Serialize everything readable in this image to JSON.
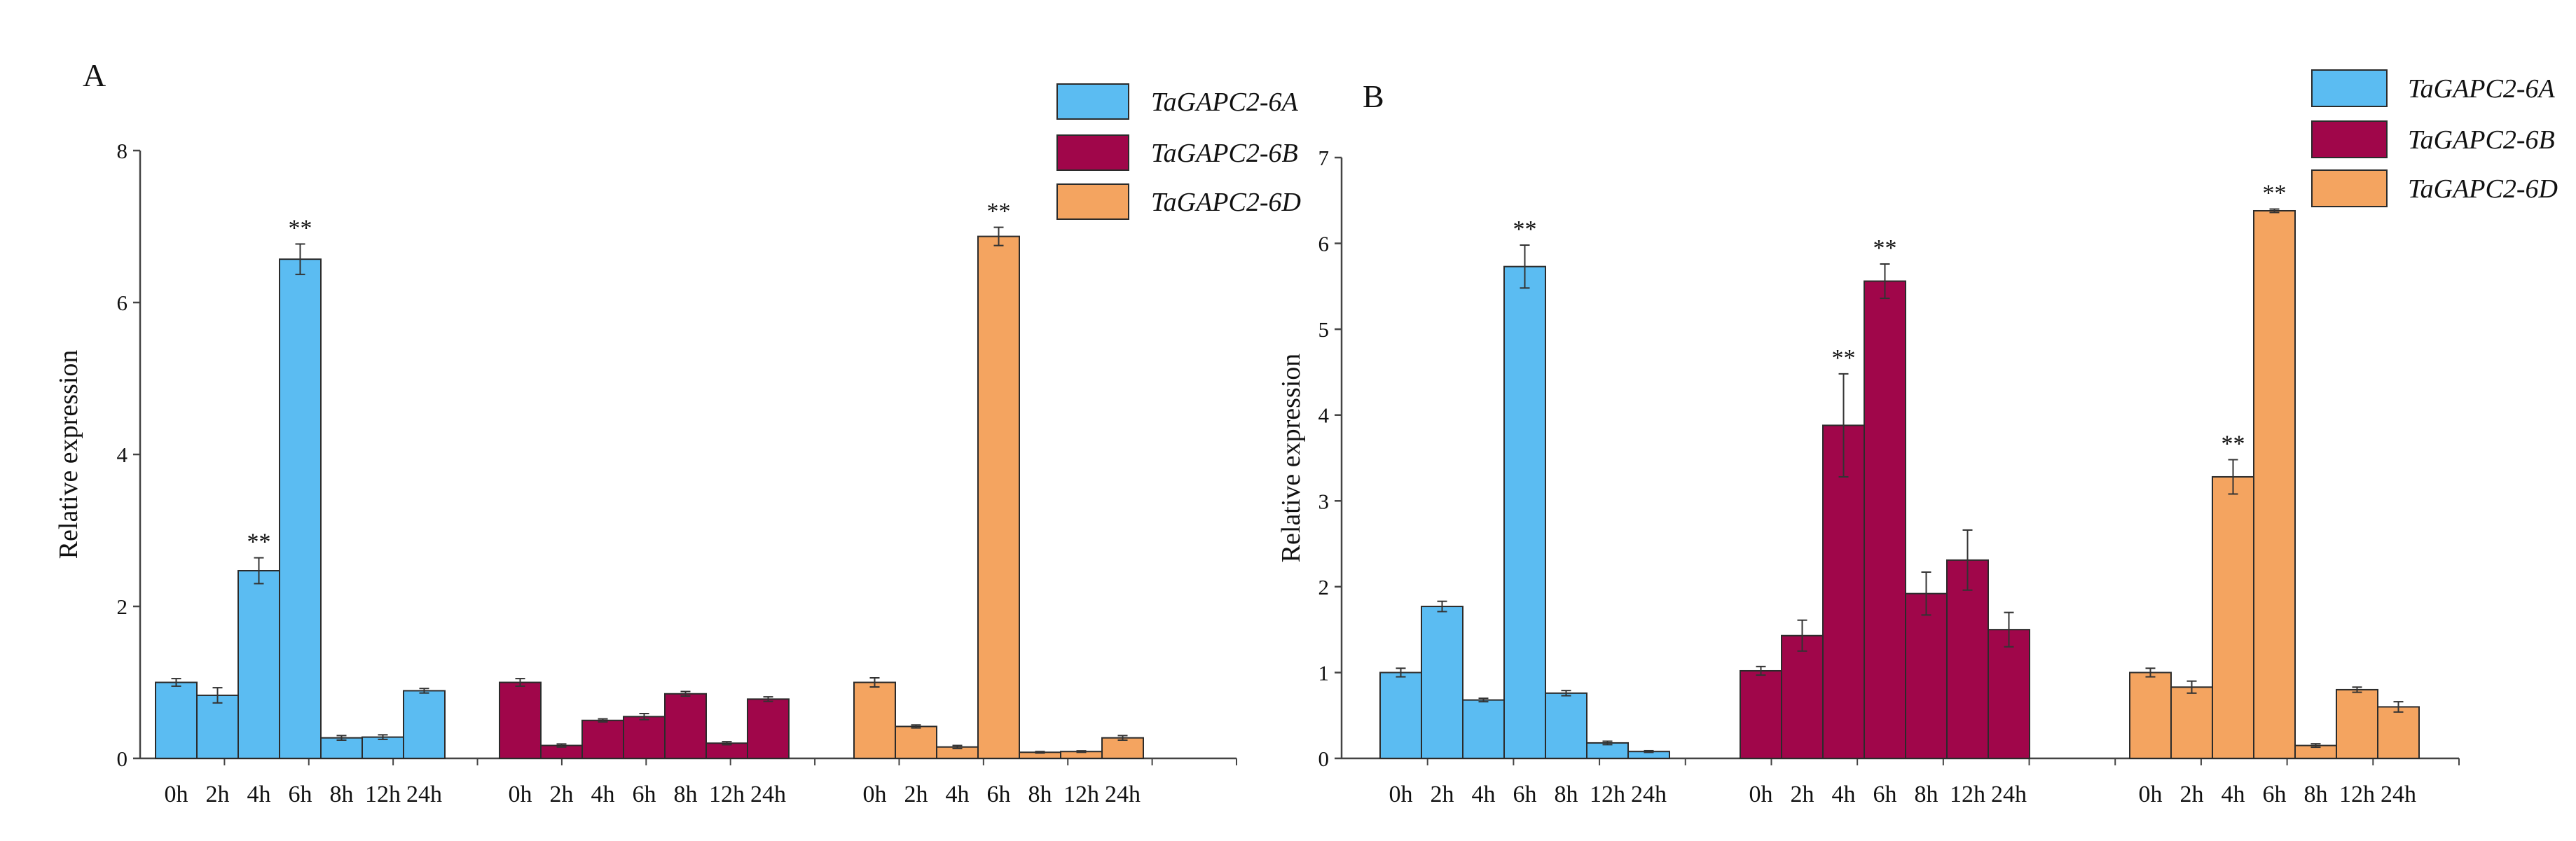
{
  "chart_data": [
    {
      "type": "bar",
      "panel": "A",
      "ylabel": "Relative expression",
      "xlabel": "",
      "ylim": [
        0,
        8
      ],
      "yticks": [
        0,
        2,
        4,
        6,
        8
      ],
      "legend_position": "top-right",
      "significance_marker": "**",
      "series": [
        {
          "name": "TaGAPC2-6A",
          "color": "#5bbcf2",
          "categories": [
            "0h",
            "2h",
            "4h",
            "6h",
            "8h",
            "12h",
            "24h"
          ],
          "values": [
            1.0,
            0.83,
            2.47,
            6.57,
            0.27,
            0.28,
            0.89
          ],
          "errors": [
            0.05,
            0.1,
            0.17,
            0.2,
            0.03,
            0.03,
            0.03
          ],
          "significant": [
            false,
            false,
            true,
            true,
            false,
            false,
            false
          ]
        },
        {
          "name": "TaGAPC2-6B",
          "color": "#a0064a",
          "categories": [
            "0h",
            "2h",
            "4h",
            "6h",
            "8h",
            "12h",
            "24h"
          ],
          "values": [
            1.0,
            0.17,
            0.5,
            0.55,
            0.85,
            0.2,
            0.78
          ],
          "errors": [
            0.05,
            0.02,
            0.02,
            0.04,
            0.03,
            0.02,
            0.03
          ],
          "significant": [
            false,
            false,
            false,
            false,
            false,
            false,
            false
          ]
        },
        {
          "name": "TaGAPC2-6D",
          "color": "#f4a460",
          "categories": [
            "0h",
            "2h",
            "4h",
            "6h",
            "8h",
            "12h",
            "24h"
          ],
          "values": [
            1.0,
            0.42,
            0.15,
            6.87,
            0.08,
            0.09,
            0.27
          ],
          "errors": [
            0.06,
            0.02,
            0.02,
            0.12,
            0.01,
            0.01,
            0.03
          ],
          "significant": [
            false,
            false,
            false,
            true,
            false,
            false,
            false
          ]
        }
      ]
    },
    {
      "type": "bar",
      "panel": "B",
      "ylabel": "Relative expression",
      "xlabel": "",
      "ylim": [
        0,
        7
      ],
      "yticks": [
        0,
        1,
        2,
        3,
        4,
        5,
        6,
        7
      ],
      "legend_position": "top-right",
      "significance_marker": "**",
      "series": [
        {
          "name": "TaGAPC2-6A",
          "color": "#5bbcf2",
          "categories": [
            "0h",
            "2h",
            "4h",
            "6h",
            "8h",
            "12h",
            "24h"
          ],
          "values": [
            1.0,
            1.77,
            0.68,
            5.73,
            0.76,
            0.18,
            0.08
          ],
          "errors": [
            0.05,
            0.06,
            0.02,
            0.25,
            0.03,
            0.02,
            0.01
          ],
          "significant": [
            false,
            false,
            false,
            true,
            false,
            false,
            false
          ]
        },
        {
          "name": "TaGAPC2-6B",
          "color": "#a0064a",
          "categories": [
            "0h",
            "2h",
            "4h",
            "6h",
            "8h",
            "12h",
            "24h"
          ],
          "values": [
            1.02,
            1.43,
            3.88,
            5.56,
            1.92,
            2.31,
            1.5
          ],
          "errors": [
            0.05,
            0.18,
            0.6,
            0.2,
            0.25,
            0.35,
            0.2
          ],
          "significant": [
            false,
            false,
            true,
            true,
            false,
            false,
            false
          ]
        },
        {
          "name": "TaGAPC2-6D",
          "color": "#f4a460",
          "categories": [
            "0h",
            "2h",
            "4h",
            "6h",
            "8h",
            "12h",
            "24h"
          ],
          "values": [
            1.0,
            0.83,
            3.28,
            6.38,
            0.15,
            0.8,
            0.6
          ],
          "errors": [
            0.05,
            0.07,
            0.2,
            0.02,
            0.02,
            0.03,
            0.06
          ],
          "significant": [
            false,
            false,
            true,
            true,
            false,
            false,
            false
          ]
        }
      ]
    }
  ]
}
